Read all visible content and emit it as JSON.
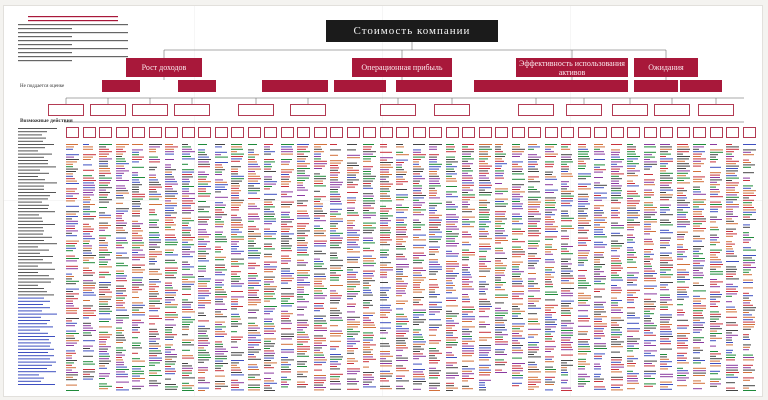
{
  "root": {
    "title": "Стоимость компании"
  },
  "branches": [
    {
      "label": "Рост доходов"
    },
    {
      "label": "Операционная прибыль"
    },
    {
      "label": "Эффективность использования активов"
    },
    {
      "label": "Ожидания"
    }
  ],
  "left_panel": {
    "not_counted": "Не поддается оценке",
    "key_actions": "Возможные действия"
  },
  "colors": {
    "accent": "#a8183a",
    "root": "#1b1b1b",
    "text_blue": "#3e4fc0",
    "text_green": "#1f8a3a",
    "text_red": "#c8323c",
    "text_purple": "#8a3aa0",
    "text_orange": "#d2703a"
  }
}
